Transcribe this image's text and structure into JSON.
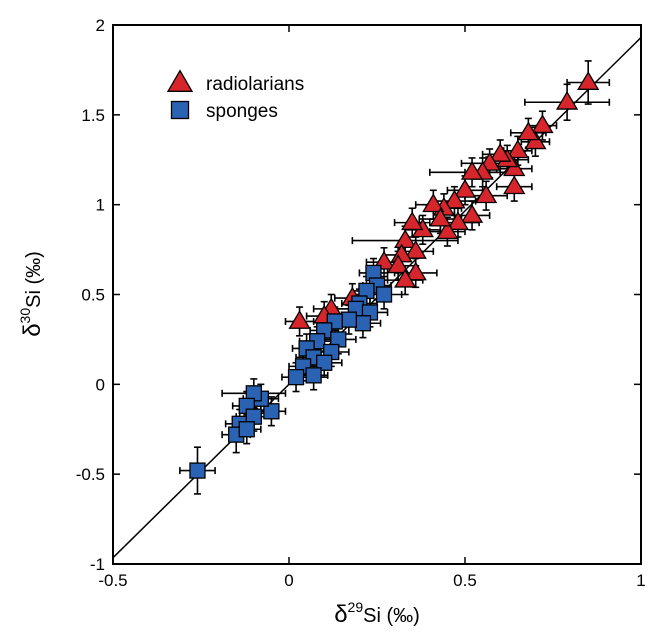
{
  "chart_data": {
    "type": "scatter",
    "xlabel": {
      "delta": "δ",
      "sup": "29",
      "rest": "Si (‰)"
    },
    "ylabel": {
      "delta": "δ",
      "sup": "30",
      "rest": "Si (‰)"
    },
    "xlim": [
      -0.5,
      1
    ],
    "ylim": [
      -1,
      2
    ],
    "xticks": [
      -0.5,
      0,
      0.5,
      1
    ],
    "xtick_labels": [
      "-0.5",
      "0",
      "0.5",
      "1"
    ],
    "yticks": [
      -1,
      -0.5,
      0,
      0.5,
      1,
      1.5,
      2
    ],
    "ytick_labels": [
      "-1",
      "-0.5",
      "0",
      "0.5",
      "1",
      "1.5",
      "2"
    ],
    "grid": false,
    "legend_position": "top-left",
    "reference_line": {
      "slope": 1.93,
      "intercept": 0
    },
    "series": [
      {
        "name": "radiolarians",
        "marker": "triangle",
        "color": "#d6262b",
        "points": [
          {
            "x": 0.85,
            "y": 1.68,
            "ex": 0.06,
            "ey": 0.12
          },
          {
            "x": 0.79,
            "y": 1.57,
            "ex": 0.12,
            "ey": 0.1
          },
          {
            "x": 0.72,
            "y": 1.44,
            "ex": 0.04,
            "ey": 0.08
          },
          {
            "x": 0.7,
            "y": 1.35,
            "ex": 0.04,
            "ey": 0.08
          },
          {
            "x": 0.68,
            "y": 1.4,
            "ex": 0.05,
            "ey": 0.08
          },
          {
            "x": 0.65,
            "y": 1.3,
            "ex": 0.04,
            "ey": 0.08
          },
          {
            "x": 0.64,
            "y": 1.2,
            "ex": 0.05,
            "ey": 0.08
          },
          {
            "x": 0.62,
            "y": 1.25,
            "ex": 0.06,
            "ey": 0.08
          },
          {
            "x": 0.6,
            "y": 1.28,
            "ex": 0.05,
            "ey": 0.08
          },
          {
            "x": 0.57,
            "y": 1.23,
            "ex": 0.08,
            "ey": 0.08
          },
          {
            "x": 0.55,
            "y": 1.18,
            "ex": 0.05,
            "ey": 0.08
          },
          {
            "x": 0.52,
            "y": 1.18,
            "ex": 0.12,
            "ey": 0.08
          },
          {
            "x": 0.64,
            "y": 1.1,
            "ex": 0.05,
            "ey": 0.08
          },
          {
            "x": 0.56,
            "y": 1.05,
            "ex": 0.06,
            "ey": 0.08
          },
          {
            "x": 0.5,
            "y": 1.08,
            "ex": 0.05,
            "ey": 0.08
          },
          {
            "x": 0.47,
            "y": 1.02,
            "ex": 0.06,
            "ey": 0.08
          },
          {
            "x": 0.44,
            "y": 0.98,
            "ex": 0.05,
            "ey": 0.08
          },
          {
            "x": 0.41,
            "y": 1.0,
            "ex": 0.05,
            "ey": 0.08
          },
          {
            "x": 0.52,
            "y": 0.94,
            "ex": 0.05,
            "ey": 0.08
          },
          {
            "x": 0.48,
            "y": 0.9,
            "ex": 0.06,
            "ey": 0.08
          },
          {
            "x": 0.45,
            "y": 0.85,
            "ex": 0.05,
            "ey": 0.08
          },
          {
            "x": 0.43,
            "y": 0.92,
            "ex": 0.06,
            "ey": 0.08
          },
          {
            "x": 0.38,
            "y": 0.86,
            "ex": 0.05,
            "ey": 0.08
          },
          {
            "x": 0.35,
            "y": 0.9,
            "ex": 0.05,
            "ey": 0.08
          },
          {
            "x": 0.33,
            "y": 0.8,
            "ex": 0.15,
            "ey": 0.08
          },
          {
            "x": 0.36,
            "y": 0.74,
            "ex": 0.05,
            "ey": 0.08
          },
          {
            "x": 0.32,
            "y": 0.72,
            "ex": 0.05,
            "ey": 0.08
          },
          {
            "x": 0.27,
            "y": 0.68,
            "ex": 0.05,
            "ey": 0.08
          },
          {
            "x": 0.31,
            "y": 0.66,
            "ex": 0.05,
            "ey": 0.08
          },
          {
            "x": 0.36,
            "y": 0.62,
            "ex": 0.06,
            "ey": 0.08
          },
          {
            "x": 0.33,
            "y": 0.58,
            "ex": 0.05,
            "ey": 0.08
          },
          {
            "x": 0.18,
            "y": 0.48,
            "ex": 0.05,
            "ey": 0.08
          },
          {
            "x": 0.12,
            "y": 0.42,
            "ex": 0.05,
            "ey": 0.08
          },
          {
            "x": 0.1,
            "y": 0.38,
            "ex": 0.05,
            "ey": 0.08
          },
          {
            "x": 0.03,
            "y": 0.35,
            "ex": 0.04,
            "ey": 0.08
          }
        ]
      },
      {
        "name": "sponges",
        "marker": "square",
        "color": "#2b63b4",
        "points": [
          {
            "x": 0.24,
            "y": 0.62,
            "ex": 0.04,
            "ey": 0.08
          },
          {
            "x": 0.25,
            "y": 0.55,
            "ex": 0.04,
            "ey": 0.08
          },
          {
            "x": 0.27,
            "y": 0.5,
            "ex": 0.05,
            "ey": 0.08
          },
          {
            "x": 0.22,
            "y": 0.52,
            "ex": 0.04,
            "ey": 0.08
          },
          {
            "x": 0.2,
            "y": 0.45,
            "ex": 0.05,
            "ey": 0.08
          },
          {
            "x": 0.19,
            "y": 0.42,
            "ex": 0.06,
            "ey": 0.08
          },
          {
            "x": 0.23,
            "y": 0.4,
            "ex": 0.05,
            "ey": 0.08
          },
          {
            "x": 0.21,
            "y": 0.34,
            "ex": 0.05,
            "ey": 0.08
          },
          {
            "x": 0.17,
            "y": 0.36,
            "ex": 0.05,
            "ey": 0.08
          },
          {
            "x": 0.13,
            "y": 0.35,
            "ex": 0.05,
            "ey": 0.08
          },
          {
            "x": 0.1,
            "y": 0.3,
            "ex": 0.04,
            "ey": 0.08
          },
          {
            "x": 0.14,
            "y": 0.25,
            "ex": 0.05,
            "ey": 0.08
          },
          {
            "x": 0.08,
            "y": 0.24,
            "ex": 0.05,
            "ey": 0.08
          },
          {
            "x": 0.05,
            "y": 0.2,
            "ex": 0.04,
            "ey": 0.08
          },
          {
            "x": 0.12,
            "y": 0.18,
            "ex": 0.05,
            "ey": 0.08
          },
          {
            "x": 0.07,
            "y": 0.15,
            "ex": 0.05,
            "ey": 0.08
          },
          {
            "x": 0.04,
            "y": 0.1,
            "ex": 0.04,
            "ey": 0.08
          },
          {
            "x": 0.1,
            "y": 0.12,
            "ex": 0.05,
            "ey": 0.08
          },
          {
            "x": 0.07,
            "y": 0.05,
            "ex": 0.04,
            "ey": 0.08
          },
          {
            "x": 0.02,
            "y": 0.04,
            "ex": 0.04,
            "ey": 0.08
          },
          {
            "x": -0.05,
            "y": -0.15,
            "ex": 0.04,
            "ey": 0.08
          },
          {
            "x": -0.08,
            "y": -0.08,
            "ex": 0.05,
            "ey": 0.08
          },
          {
            "x": -0.1,
            "y": -0.05,
            "ex": 0.09,
            "ey": 0.08
          },
          {
            "x": -0.12,
            "y": -0.12,
            "ex": 0.04,
            "ey": 0.08
          },
          {
            "x": -0.14,
            "y": -0.22,
            "ex": 0.04,
            "ey": 0.08
          },
          {
            "x": -0.1,
            "y": -0.18,
            "ex": 0.05,
            "ey": 0.08
          },
          {
            "x": -0.15,
            "y": -0.28,
            "ex": 0.04,
            "ey": 0.1
          },
          {
            "x": -0.12,
            "y": -0.25,
            "ex": 0.04,
            "ey": 0.08
          },
          {
            "x": -0.26,
            "y": -0.48,
            "ex": 0.05,
            "ey": 0.13
          }
        ]
      }
    ]
  }
}
